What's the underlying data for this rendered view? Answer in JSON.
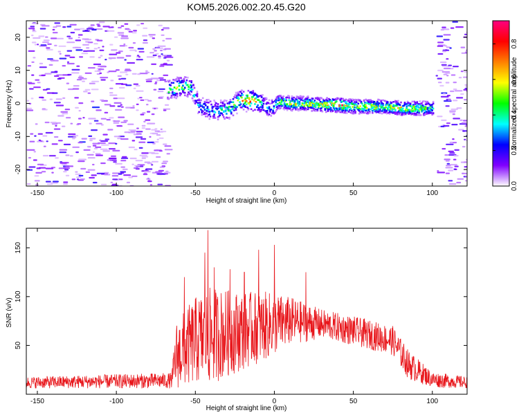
{
  "title": "KOM5.2026.002.20.45.G20",
  "colorbar": {
    "label": "Normalized spectral amplitude",
    "ticks": [
      "0.0",
      "0.2",
      "0.4",
      "0.6",
      "0.8"
    ],
    "tick_values": [
      0.0,
      0.2,
      0.4,
      0.6,
      0.8
    ],
    "range": [
      0,
      0.93
    ],
    "colors": [
      "#ffffff",
      "#8000ff",
      "#0000ff",
      "#00ffff",
      "#00ff00",
      "#ffff00",
      "#ff8000",
      "#ff0000",
      "#ff0080"
    ]
  },
  "chart_data": [
    {
      "type": "heatmap",
      "name": "spectrogram",
      "xlabel": "Height of straight line (km)",
      "ylabel": "Frequency (Hz)",
      "xlim": [
        -157,
        122
      ],
      "ylim": [
        -25,
        25
      ],
      "xticks": [
        -150,
        -100,
        -50,
        0,
        50,
        100
      ],
      "xtick_labels": [
        "-150",
        "-100",
        "-50",
        "0",
        "50",
        "100"
      ],
      "yticks": [
        20,
        10,
        0,
        -10,
        -20
      ],
      "ytick_labels": [
        "20",
        "10",
        "0",
        "-10",
        "-20"
      ],
      "noise_regions": [
        [
          -157,
          -68
        ],
        [
          102,
          122
        ]
      ],
      "ridge": [
        {
          "x": -68,
          "f": 4,
          "amp": 0.45
        },
        {
          "x": -60,
          "f": 5,
          "amp": 0.5
        },
        {
          "x": -53,
          "f": 5,
          "amp": 0.4
        },
        {
          "x": -48,
          "f": -1,
          "amp": 0.3
        },
        {
          "x": -40,
          "f": -2,
          "amp": 0.35
        },
        {
          "x": -30,
          "f": -2,
          "amp": 0.4
        },
        {
          "x": -22,
          "f": 1,
          "amp": 0.6
        },
        {
          "x": -15,
          "f": 1,
          "amp": 0.8
        },
        {
          "x": -8,
          "f": 0,
          "amp": 0.35
        },
        {
          "x": -3,
          "f": -2,
          "amp": 0.25
        },
        {
          "x": 2,
          "f": 0.5,
          "amp": 0.5
        },
        {
          "x": 10,
          "f": 0,
          "amp": 0.55
        },
        {
          "x": 20,
          "f": 0,
          "amp": 0.6
        },
        {
          "x": 30,
          "f": -0.5,
          "amp": 0.55
        },
        {
          "x": 40,
          "f": -0.5,
          "amp": 0.8
        },
        {
          "x": 50,
          "f": -1,
          "amp": 0.55
        },
        {
          "x": 60,
          "f": -1,
          "amp": 0.6
        },
        {
          "x": 70,
          "f": -1,
          "amp": 0.55
        },
        {
          "x": 80,
          "f": -1.5,
          "amp": 0.6
        },
        {
          "x": 90,
          "f": -1.5,
          "amp": 0.55
        },
        {
          "x": 100,
          "f": -1.5,
          "amp": 0.4
        }
      ]
    },
    {
      "type": "line",
      "name": "snr",
      "xlabel": "Height of straight line (km)",
      "ylabel": "SNR (v/v)",
      "xlim": [
        -157,
        122
      ],
      "ylim": [
        0,
        170
      ],
      "xticks": [
        -150,
        -100,
        -50,
        0,
        50,
        100
      ],
      "xtick_labels": [
        "-150",
        "-100",
        "-50",
        "0",
        "50",
        "100"
      ],
      "yticks": [
        50,
        100,
        150
      ],
      "ytick_labels": [
        "50",
        "100",
        "150"
      ],
      "color": "#e8161b",
      "envelope": [
        {
          "x": -157,
          "base": 12,
          "amp": 6
        },
        {
          "x": -65,
          "base": 14,
          "amp": 8
        },
        {
          "x": -62,
          "base": 40,
          "amp": 35
        },
        {
          "x": -50,
          "base": 55,
          "amp": 45
        },
        {
          "x": -40,
          "base": 60,
          "amp": 50
        },
        {
          "x": -20,
          "base": 65,
          "amp": 40
        },
        {
          "x": -5,
          "base": 70,
          "amp": 35
        },
        {
          "x": 10,
          "base": 75,
          "amp": 25
        },
        {
          "x": 30,
          "base": 72,
          "amp": 15
        },
        {
          "x": 50,
          "base": 65,
          "amp": 15
        },
        {
          "x": 75,
          "base": 55,
          "amp": 15
        },
        {
          "x": 85,
          "base": 30,
          "amp": 15
        },
        {
          "x": 100,
          "base": 15,
          "amp": 8
        },
        {
          "x": 122,
          "base": 12,
          "amp": 6
        }
      ],
      "spikes": [
        {
          "x": -42,
          "y": 168
        },
        {
          "x": -44,
          "y": 145
        },
        {
          "x": -38,
          "y": 130
        },
        {
          "x": -28,
          "y": 128
        },
        {
          "x": -19,
          "y": 125
        },
        {
          "x": -10,
          "y": 148
        },
        {
          "x": 0,
          "y": 153
        },
        {
          "x": 20,
          "y": 125
        },
        {
          "x": -57,
          "y": 120
        }
      ]
    }
  ]
}
